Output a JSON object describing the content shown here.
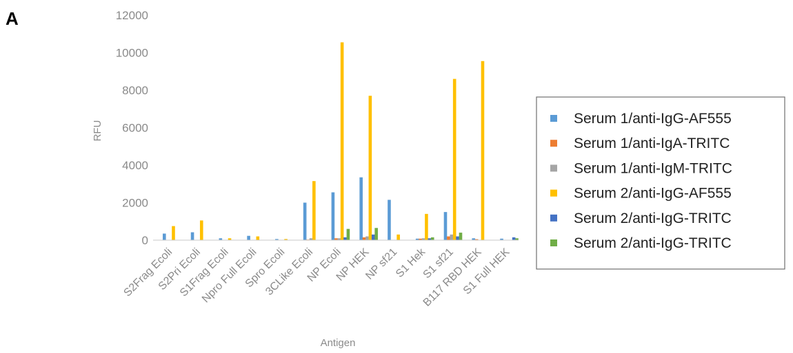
{
  "panel_label": "A",
  "chart_data": {
    "type": "bar",
    "title": "",
    "xlabel": "Antigen",
    "ylabel": "RFU",
    "ylim": [
      0,
      12000
    ],
    "yticks": [
      0,
      2000,
      4000,
      6000,
      8000,
      10000,
      12000
    ],
    "grid": false,
    "legend_position": "right",
    "categories": [
      "S2Frag Ecoli",
      "S2Pri Ecoli",
      "S1Frag Ecoli",
      "Npro Full Ecoli",
      "Spro Ecoli",
      "3CLike Ecoli",
      "NP Ecoli",
      "NP HEK",
      "NP sf21",
      "S1 Hek",
      "S1 sf21",
      "B117 RBD HEK",
      "S1 Full HEK"
    ],
    "series": [
      {
        "name": "Serum 1/anti-IgG-AF555",
        "color": "#5b9bd5",
        "values": [
          350,
          420,
          100,
          230,
          60,
          2000,
          2550,
          3350,
          2150,
          80,
          1500,
          100,
          80
        ]
      },
      {
        "name": "Serum 1/anti-IgA-TRITC",
        "color": "#ed7d31",
        "values": [
          0,
          0,
          0,
          0,
          0,
          30,
          100,
          150,
          0,
          80,
          200,
          50,
          0
        ]
      },
      {
        "name": "Serum 1/anti-IgM-TRITC",
        "color": "#a5a5a5",
        "values": [
          0,
          0,
          0,
          0,
          0,
          100,
          100,
          200,
          0,
          100,
          300,
          0,
          0
        ]
      },
      {
        "name": "Serum 2/anti-IgG-AF555",
        "color": "#ffc000",
        "values": [
          750,
          1050,
          100,
          200,
          60,
          3150,
          10550,
          7700,
          300,
          1400,
          8600,
          9550,
          0
        ]
      },
      {
        "name": "Serum 2/anti-IgG-TRITC",
        "color": "#4472c4",
        "values": [
          0,
          0,
          0,
          0,
          0,
          0,
          150,
          300,
          0,
          100,
          200,
          0,
          150
        ]
      },
      {
        "name": "Serum 2/anti-IgG-TRITC",
        "color": "#70ad47",
        "values": [
          0,
          0,
          0,
          0,
          0,
          0,
          600,
          650,
          0,
          150,
          400,
          0,
          100
        ]
      }
    ]
  }
}
